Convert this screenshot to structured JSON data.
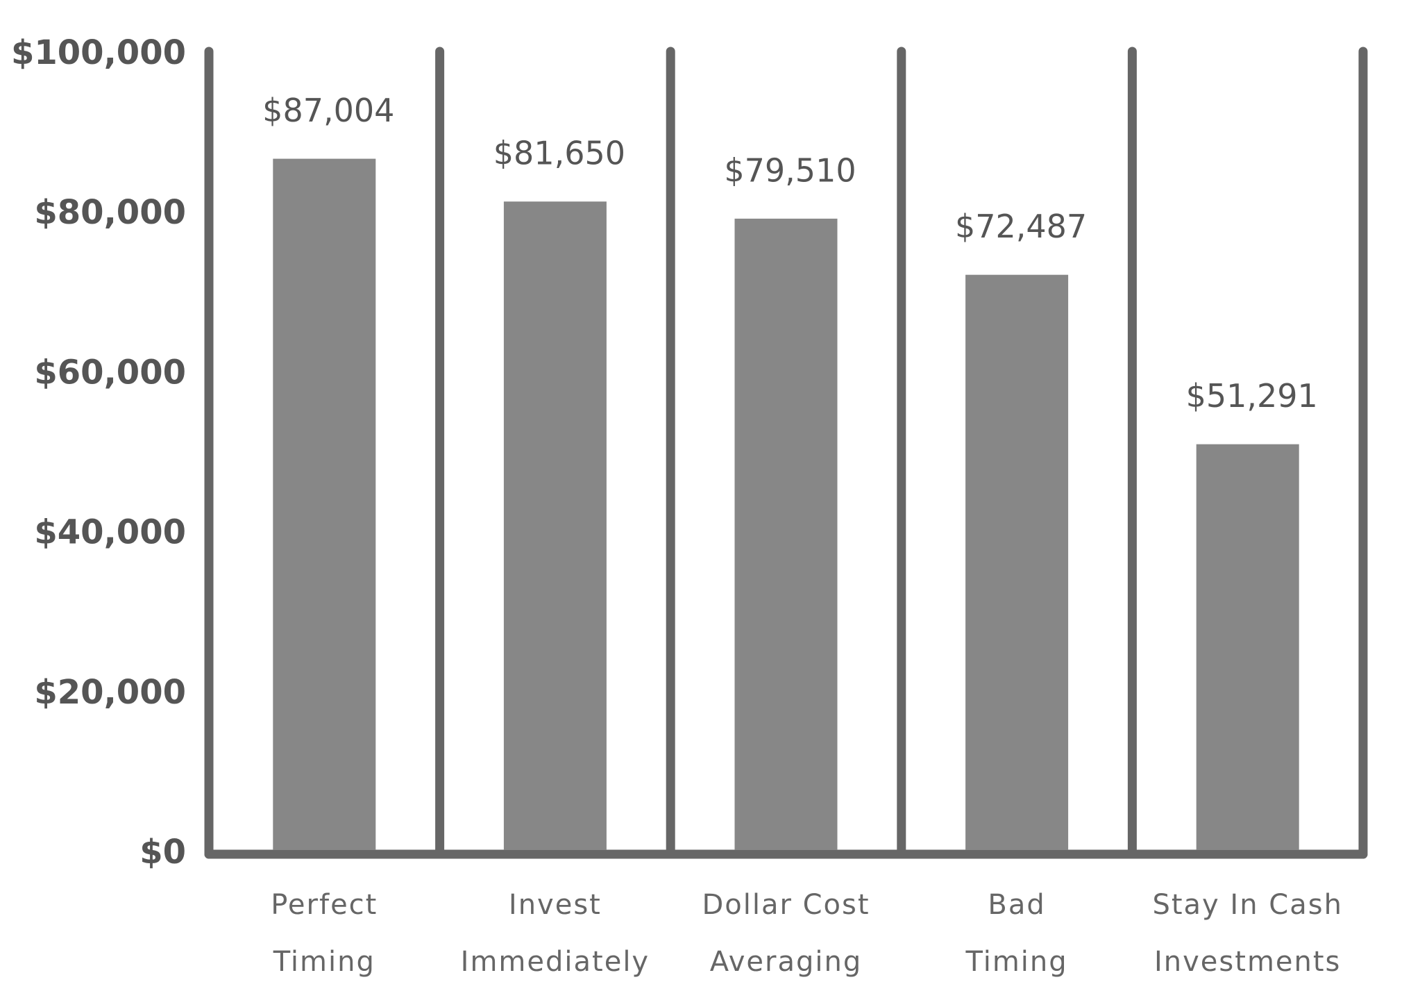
{
  "chart_data": {
    "type": "bar",
    "categories": [
      "Perfect\nTiming",
      "Invest\nImmediately",
      "Dollar Cost\nAveraging",
      "Bad\nTiming",
      "Stay In Cash\nInvestments"
    ],
    "values": [
      87004,
      81650,
      79510,
      72487,
      51291
    ],
    "value_labels": [
      "$87,004",
      "$81,650",
      "$79,510",
      "$72,487",
      "$51,291"
    ],
    "color": "#878787",
    "ylim": [
      0,
      100000
    ],
    "yticks": [
      {
        "value": 0,
        "label": "$0"
      },
      {
        "value": 20000,
        "label": "$20,000"
      },
      {
        "value": 40000,
        "label": "$40,000"
      },
      {
        "value": 60000,
        "label": "$60,000"
      },
      {
        "value": 80000,
        "label": "$80,000"
      },
      {
        "value": 100000,
        "label": "$100,000"
      }
    ]
  }
}
